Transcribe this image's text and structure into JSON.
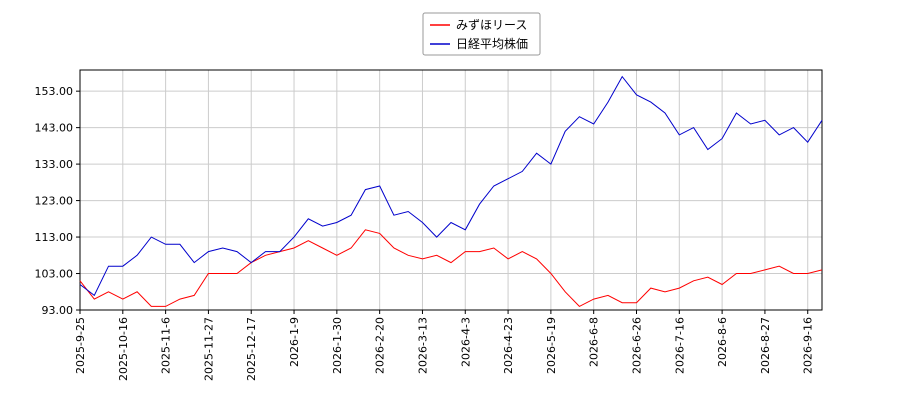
{
  "chart_data": {
    "type": "line",
    "x": [
      "2025-9-25",
      "2025-10-2",
      "2025-10-9",
      "2025-10-16",
      "2025-10-23",
      "2025-10-30",
      "2025-11-6",
      "2025-11-13",
      "2025-11-20",
      "2025-11-27",
      "2025-12-4",
      "2025-12-11",
      "2025-12-17",
      "2025-12-24",
      "2025-12-30",
      "2026-1-9",
      "2026-1-16",
      "2026-1-23",
      "2026-1-30",
      "2026-2-6",
      "2026-2-13",
      "2026-2-20",
      "2026-2-27",
      "2026-3-6",
      "2026-3-13",
      "2026-3-20",
      "2026-3-27",
      "2026-4-3",
      "2026-4-10",
      "2026-4-17",
      "2026-4-23",
      "2026-4-30",
      "2026-5-12",
      "2026-5-19",
      "2026-5-26",
      "2026-6-2",
      "2026-6-8",
      "2026-6-12",
      "2026-6-19",
      "2026-6-26",
      "2026-7-3",
      "2026-7-10",
      "2026-7-16",
      "2026-7-23",
      "2026-7-30",
      "2026-8-6",
      "2026-8-13",
      "2026-8-20",
      "2026-8-27",
      "2026-9-3",
      "2026-9-10",
      "2026-9-16",
      "2026-9-22"
    ],
    "series": [
      {
        "name": "みずほリース",
        "color": "#ff0000",
        "values": [
          101,
          96,
          98,
          96,
          98,
          94,
          94,
          96,
          97,
          103,
          103,
          103,
          106,
          108,
          109,
          110,
          112,
          110,
          108,
          110,
          115,
          114,
          110,
          108,
          107,
          108,
          106,
          109,
          109,
          110,
          107,
          109,
          107,
          103,
          98,
          94,
          96,
          97,
          95,
          95,
          99,
          98,
          99,
          101,
          102,
          100,
          103,
          103,
          104,
          105,
          103,
          103,
          104
        ]
      },
      {
        "name": "日経平均株価",
        "color": "#0000cc",
        "values": [
          100,
          97,
          105,
          105,
          108,
          113,
          111,
          111,
          106,
          109,
          110,
          109,
          106,
          109,
          109,
          113,
          118,
          116,
          117,
          119,
          126,
          127,
          119,
          120,
          117,
          113,
          117,
          115,
          122,
          127,
          129,
          131,
          136,
          133,
          142,
          146,
          144,
          150,
          157,
          152,
          150,
          147,
          141,
          143,
          137,
          140,
          147,
          144,
          145,
          141,
          143,
          139,
          145
        ]
      }
    ],
    "ylim": [
      93,
      158.8
    ],
    "yticks": [
      {
        "value": 93,
        "label": "93.00"
      },
      {
        "value": 103,
        "label": "103.00"
      },
      {
        "value": 113,
        "label": "113.00"
      },
      {
        "value": 123,
        "label": "123.00"
      },
      {
        "value": 133,
        "label": "133.00"
      },
      {
        "value": 143,
        "label": "143.00"
      },
      {
        "value": 153,
        "label": "153.00"
      }
    ],
    "xticks": [
      "2025-9-25",
      "2025-10-16",
      "2025-11-6",
      "2025-11-27",
      "2025-12-17",
      "2026-1-9",
      "2026-1-30",
      "2026-2-20",
      "2026-3-13",
      "2026-4-3",
      "2026-4-23",
      "2026-5-19",
      "2026-6-8",
      "2026-6-26",
      "2026-7-16",
      "2026-8-6",
      "2026-8-27",
      "2026-9-16"
    ],
    "grid": true,
    "legend": "top"
  }
}
